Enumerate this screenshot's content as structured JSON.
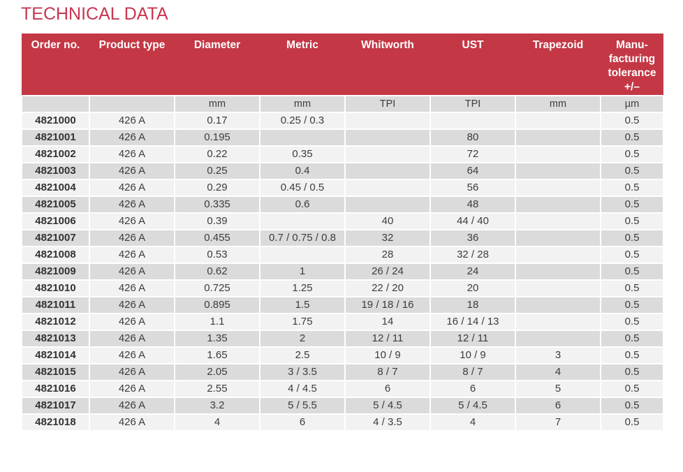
{
  "page": {
    "title": "TECHNICAL DATA"
  },
  "colors": {
    "title_red": "#C8364E",
    "header_red": "#C43845",
    "row_light": "#F2F2F2",
    "row_dark": "#DBDBDC",
    "text": "#3C3C3C"
  },
  "table": {
    "columns": [
      {
        "key": "order-no",
        "label": "Order no.",
        "unit": ""
      },
      {
        "key": "product-type",
        "label": "Product type",
        "unit": ""
      },
      {
        "key": "diameter",
        "label": "Diameter",
        "unit": "mm"
      },
      {
        "key": "metric",
        "label": "Metric",
        "unit": "mm"
      },
      {
        "key": "whitworth",
        "label": "Whitworth",
        "unit": "TPI"
      },
      {
        "key": "ust",
        "label": "UST",
        "unit": "TPI"
      },
      {
        "key": "trapezoid",
        "label": "Trapezoid",
        "unit": "mm"
      },
      {
        "key": "tolerance",
        "label": "Manu-\nfacturing\ntolerance\n+/–",
        "unit": "µm"
      }
    ],
    "rows": [
      [
        "4821000",
        "426 A",
        "0.17",
        "0.25 / 0.3",
        "",
        "",
        "",
        "0.5"
      ],
      [
        "4821001",
        "426 A",
        "0.195",
        "",
        "",
        "80",
        "",
        "0.5"
      ],
      [
        "4821002",
        "426 A",
        "0.22",
        "0.35",
        "",
        "72",
        "",
        "0.5"
      ],
      [
        "4821003",
        "426 A",
        "0.25",
        "0.4",
        "",
        "64",
        "",
        "0.5"
      ],
      [
        "4821004",
        "426 A",
        "0.29",
        "0.45 / 0.5",
        "",
        "56",
        "",
        "0.5"
      ],
      [
        "4821005",
        "426 A",
        "0.335",
        "0.6",
        "",
        "48",
        "",
        "0.5"
      ],
      [
        "4821006",
        "426 A",
        "0.39",
        "",
        "40",
        "44 / 40",
        "",
        "0.5"
      ],
      [
        "4821007",
        "426 A",
        "0.455",
        "0.7 / 0.75 / 0.8",
        "32",
        "36",
        "",
        "0.5"
      ],
      [
        "4821008",
        "426 A",
        "0.53",
        "",
        "28",
        "32 / 28",
        "",
        "0.5"
      ],
      [
        "4821009",
        "426 A",
        "0.62",
        "1",
        "26 / 24",
        "24",
        "",
        "0.5"
      ],
      [
        "4821010",
        "426 A",
        "0.725",
        "1.25",
        "22 / 20",
        "20",
        "",
        "0.5"
      ],
      [
        "4821011",
        "426 A",
        "0.895",
        "1.5",
        "19 / 18 / 16",
        "18",
        "",
        "0.5"
      ],
      [
        "4821012",
        "426 A",
        "1.1",
        "1.75",
        "14",
        "16 / 14 / 13",
        "",
        "0.5"
      ],
      [
        "4821013",
        "426 A",
        "1.35",
        "2",
        "12 / 11",
        "12 / 11",
        "",
        "0.5"
      ],
      [
        "4821014",
        "426 A",
        "1.65",
        "2.5",
        "10 / 9",
        "10 / 9",
        "3",
        "0.5"
      ],
      [
        "4821015",
        "426 A",
        "2.05",
        "3 / 3.5",
        "8 / 7",
        "8 / 7",
        "4",
        "0.5"
      ],
      [
        "4821016",
        "426 A",
        "2.55",
        "4 / 4.5",
        "6",
        "6",
        "5",
        "0.5"
      ],
      [
        "4821017",
        "426 A",
        "3.2",
        "5 / 5.5",
        "5 / 4.5",
        "5 / 4.5",
        "6",
        "0.5"
      ],
      [
        "4821018",
        "426 A",
        "4",
        "6",
        "4 / 3.5",
        "4",
        "7",
        "0.5"
      ]
    ]
  }
}
